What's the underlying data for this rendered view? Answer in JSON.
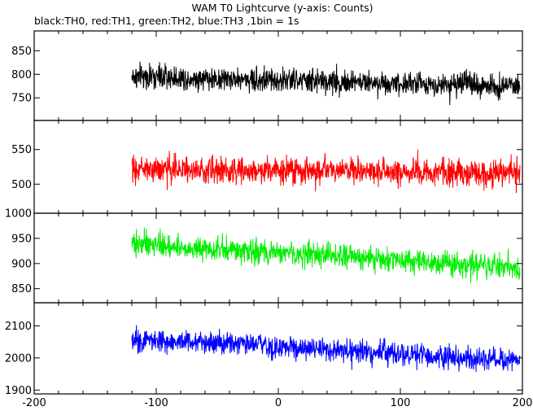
{
  "chart_data": {
    "type": "line",
    "title": "WAM T0 Lightcurve (y-axis: Counts)",
    "subtitle": "black:TH0, red:TH1, green:TH2, blue:TH3 ,1bin = 1s",
    "xlim": [
      -200,
      200
    ],
    "x_ticks": [
      -200,
      -100,
      0,
      100,
      200
    ],
    "x_tick_labels": [
      "-200",
      "-100",
      "0",
      "100",
      "200"
    ],
    "x_data_range": [
      -120,
      198
    ],
    "bin_seconds": 1,
    "grid": false,
    "panels": [
      {
        "name": "TH0",
        "color": "#000000",
        "ylim": [
          702,
          892
        ],
        "y_ticks": [
          750,
          800,
          850
        ],
        "y_tick_labels": [
          "750",
          "800",
          "850"
        ],
        "mean_start": 795,
        "mean_end": 775,
        "scatter": 33
      },
      {
        "name": "TH1",
        "color": "#ff0000",
        "ylim": [
          458,
          592
        ],
        "y_ticks": [
          500,
          550
        ],
        "y_tick_labels": [
          "500",
          "550"
        ],
        "mean_start": 522,
        "mean_end": 516,
        "scatter": 24
      },
      {
        "name": "TH2",
        "color": "#00ee00",
        "ylim": [
          822,
          1000
        ],
        "y_ticks": [
          850,
          900,
          950,
          1000
        ],
        "y_tick_labels": [
          "850",
          "900",
          "950",
          "1000"
        ],
        "mean_start": 940,
        "mean_end": 890,
        "scatter": 30
      },
      {
        "name": "TH3",
        "color": "#0000ff",
        "ylim": [
          1888,
          2172
        ],
        "y_ticks": [
          1900,
          2000,
          2100
        ],
        "y_tick_labels": [
          "1900",
          "2000",
          "2100"
        ],
        "mean_start": 2060,
        "mean_end": 1990,
        "scatter": 45
      }
    ]
  }
}
